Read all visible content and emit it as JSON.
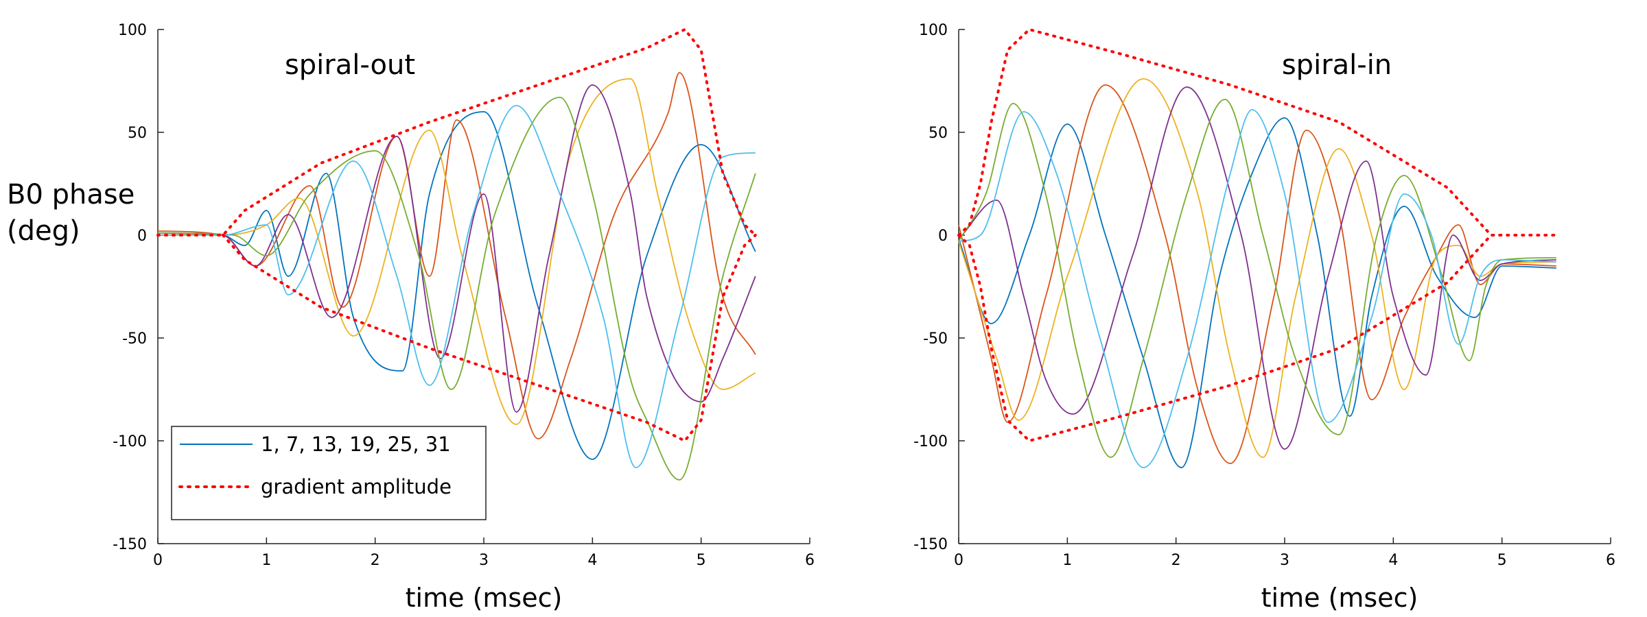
{
  "figure": {
    "ylabel_line1": "B0 phase",
    "ylabel_line2": "(deg)"
  },
  "chart_data": [
    {
      "type": "line",
      "title": "spiral-out",
      "xlabel": "time (msec)",
      "ylabel": "B0 phase (deg)",
      "xlim": [
        0,
        6
      ],
      "ylim": [
        -150,
        100
      ],
      "xticks": [
        0,
        1,
        2,
        3,
        4,
        5,
        6
      ],
      "yticks": [
        -150,
        -100,
        -50,
        0,
        50,
        100
      ],
      "legend": {
        "location": "bottom-left",
        "entries": [
          {
            "label": "1, 7, 13, 19, 25, 31",
            "style": "solid",
            "color": "#0072BD"
          },
          {
            "label": "gradient amplitude",
            "style": "dotted",
            "color": "#FF0000"
          }
        ]
      },
      "series": [
        {
          "name": "channel-1",
          "color": "#0072BD",
          "group": "oscillating",
          "x": [
            0,
            0.6,
            0.8,
            1.0,
            1.2,
            1.55,
            1.8,
            2.25,
            2.5,
            3.0,
            3.5,
            4.0,
            4.5,
            5.0,
            5.5
          ],
          "y": [
            1,
            0,
            -5,
            12,
            -20,
            30,
            -40,
            -66,
            20,
            60,
            -35,
            -109,
            -10,
            44,
            -8
          ]
        },
        {
          "name": "channel-7",
          "color": "#D95319",
          "group": "oscillating",
          "x": [
            0,
            0.6,
            0.9,
            1.4,
            1.7,
            2.2,
            2.5,
            2.75,
            3.2,
            3.5,
            3.8,
            4.2,
            4.7,
            4.8,
            5.2,
            5.5
          ],
          "y": [
            2,
            0,
            -15,
            24,
            -35,
            48,
            -20,
            56,
            -40,
            -99,
            -60,
            10,
            60,
            79,
            -30,
            -58
          ]
        },
        {
          "name": "channel-13",
          "color": "#EDB120",
          "group": "oscillating",
          "x": [
            0,
            0.6,
            1.0,
            1.3,
            1.8,
            2.5,
            2.8,
            3.3,
            3.8,
            4.35,
            4.6,
            4.9,
            5.2,
            5.5
          ],
          "y": [
            1,
            0,
            5,
            18,
            -49,
            51,
            -10,
            -92,
            40,
            76,
            20,
            -44,
            -75,
            -67
          ]
        },
        {
          "name": "channel-19",
          "color": "#7E2F8E",
          "group": "oscillating",
          "x": [
            0,
            0.6,
            0.9,
            1.2,
            1.6,
            2.2,
            2.6,
            3.0,
            3.3,
            3.6,
            4.0,
            4.35,
            4.5,
            5.0,
            5.2,
            5.5
          ],
          "y": [
            1,
            0,
            -15,
            10,
            -40,
            48,
            -60,
            20,
            -86,
            -10,
            73,
            20,
            -30,
            -81,
            -60,
            -20
          ]
        },
        {
          "name": "channel-25",
          "color": "#77AC30",
          "group": "oscillating",
          "x": [
            0,
            0.7,
            1.0,
            1.4,
            2.0,
            2.4,
            2.7,
            3.1,
            3.7,
            4.0,
            4.35,
            4.5,
            4.8,
            5.2,
            5.5
          ],
          "y": [
            1,
            0,
            -10,
            20,
            41,
            -10,
            -75,
            10,
            67,
            20,
            -70,
            -90,
            -119,
            -20,
            30
          ]
        },
        {
          "name": "channel-31",
          "color": "#4DBEEE",
          "group": "oscillating",
          "x": [
            0,
            0.6,
            1.0,
            1.2,
            1.8,
            2.2,
            2.5,
            2.9,
            3.3,
            3.7,
            4.1,
            4.4,
            4.8,
            5.2,
            5.5
          ],
          "y": [
            0,
            0,
            5,
            -29,
            36,
            -20,
            -73,
            10,
            63,
            20,
            -40,
            -113,
            -40,
            38,
            40
          ]
        },
        {
          "name": "gradient amplitude (upper)",
          "color": "#FF0000",
          "group": "gradient",
          "x": [
            0,
            0.6,
            0.8,
            1.5,
            2.5,
            3.5,
            4.5,
            4.85,
            5.0,
            5.2,
            5.4,
            5.5
          ],
          "y": [
            0,
            0,
            12,
            35,
            55,
            73,
            91,
            100,
            90,
            30,
            5,
            0
          ]
        },
        {
          "name": "gradient amplitude (lower)",
          "color": "#FF0000",
          "group": "gradient",
          "x": [
            0.6,
            0.8,
            1.5,
            2.5,
            3.5,
            4.5,
            4.85,
            5.0,
            5.2,
            5.4,
            5.5
          ],
          "y": [
            0,
            -12,
            -35,
            -55,
            -73,
            -91,
            -100,
            -90,
            -30,
            -5,
            0
          ]
        }
      ]
    },
    {
      "type": "line",
      "title": "spiral-in",
      "xlabel": "time (msec)",
      "ylabel": "B0 phase (deg)",
      "xlim": [
        0,
        6
      ],
      "ylim": [
        -150,
        100
      ],
      "xticks": [
        0,
        1,
        2,
        3,
        4,
        5,
        6
      ],
      "yticks": [
        -150,
        -100,
        -50,
        0,
        50,
        100
      ],
      "series": [
        {
          "name": "channel-1",
          "color": "#0072BD",
          "group": "oscillating",
          "x": [
            0,
            0.3,
            0.65,
            1.0,
            1.35,
            1.7,
            2.05,
            2.4,
            2.7,
            3.0,
            3.3,
            3.6,
            3.8,
            4.1,
            4.4,
            4.75,
            5.0,
            5.5
          ],
          "y": [
            -2,
            -43,
            0,
            54,
            0,
            -60,
            -113,
            -20,
            30,
            57,
            0,
            -88,
            -30,
            14,
            -20,
            -40,
            -15,
            -16
          ]
        },
        {
          "name": "channel-7",
          "color": "#D95319",
          "group": "oscillating",
          "x": [
            0,
            0.3,
            0.45,
            0.8,
            1.35,
            1.9,
            2.2,
            2.5,
            2.9,
            3.2,
            3.5,
            3.8,
            4.1,
            4.4,
            4.6,
            4.8,
            5.0,
            5.5
          ],
          "y": [
            5,
            -60,
            -91,
            -30,
            73,
            0,
            -75,
            -111,
            -30,
            51,
            10,
            -80,
            -40,
            -10,
            5,
            -24,
            -14,
            -15
          ]
        },
        {
          "name": "channel-13",
          "color": "#EDB120",
          "group": "oscillating",
          "x": [
            0,
            0.35,
            0.55,
            1.0,
            1.7,
            2.2,
            2.5,
            2.8,
            3.1,
            3.5,
            3.8,
            4.1,
            4.4,
            4.6,
            4.8,
            5.0,
            5.5
          ],
          "y": [
            -3,
            -60,
            -90,
            -20,
            76,
            20,
            -60,
            -108,
            -30,
            42,
            0,
            -75,
            -10,
            -5,
            -20,
            -14,
            -13
          ]
        },
        {
          "name": "channel-19",
          "color": "#7E2F8E",
          "group": "oscillating",
          "x": [
            0,
            0.35,
            0.6,
            0.8,
            1.05,
            1.6,
            2.1,
            2.6,
            3.0,
            3.4,
            3.75,
            4.0,
            4.3,
            4.55,
            4.8,
            5.0,
            5.5
          ],
          "y": [
            -2,
            17,
            -30,
            -70,
            -87,
            -10,
            72,
            0,
            -104,
            -20,
            36,
            -30,
            -68,
            0,
            -22,
            -14,
            -12
          ]
        },
        {
          "name": "channel-25",
          "color": "#77AC30",
          "group": "oscillating",
          "x": [
            0,
            0.25,
            0.5,
            0.8,
            1.1,
            1.4,
            1.7,
            2.1,
            2.45,
            2.8,
            3.1,
            3.5,
            3.85,
            4.1,
            4.45,
            4.7,
            4.85,
            5.0,
            5.5
          ],
          "y": [
            -3,
            20,
            64,
            20,
            -60,
            -108,
            -60,
            20,
            66,
            0,
            -60,
            -97,
            0,
            29,
            -20,
            -61,
            -25,
            -12,
            -11
          ]
        },
        {
          "name": "channel-31",
          "color": "#4DBEEE",
          "group": "oscillating",
          "x": [
            0,
            0.2,
            0.6,
            0.9,
            1.3,
            1.7,
            2.1,
            2.5,
            2.7,
            3.0,
            3.4,
            3.8,
            4.1,
            4.35,
            4.6,
            4.8,
            5.0,
            5.5
          ],
          "y": [
            -3,
            0,
            60,
            30,
            -50,
            -113,
            -60,
            30,
            61,
            20,
            -91,
            -40,
            20,
            0,
            -53,
            -20,
            -12,
            -13
          ]
        },
        {
          "name": "gradient amplitude (upper)",
          "color": "#FF0000",
          "group": "gradient",
          "x": [
            0,
            0.1,
            0.2,
            0.3,
            0.45,
            0.65,
            1.5,
            2.5,
            3.5,
            4.5,
            4.9,
            5.0,
            5.5
          ],
          "y": [
            0,
            5,
            25,
            55,
            90,
            100,
            88,
            73,
            55,
            23,
            0,
            0,
            0
          ]
        },
        {
          "name": "gradient amplitude (lower)",
          "color": "#FF0000",
          "group": "gradient",
          "x": [
            0,
            0.1,
            0.2,
            0.3,
            0.45,
            0.65,
            1.5,
            2.5,
            3.5,
            4.5,
            4.9,
            5.0
          ],
          "y": [
            0,
            -5,
            -25,
            -55,
            -90,
            -100,
            -88,
            -73,
            -55,
            -23,
            0,
            0
          ]
        }
      ]
    }
  ]
}
